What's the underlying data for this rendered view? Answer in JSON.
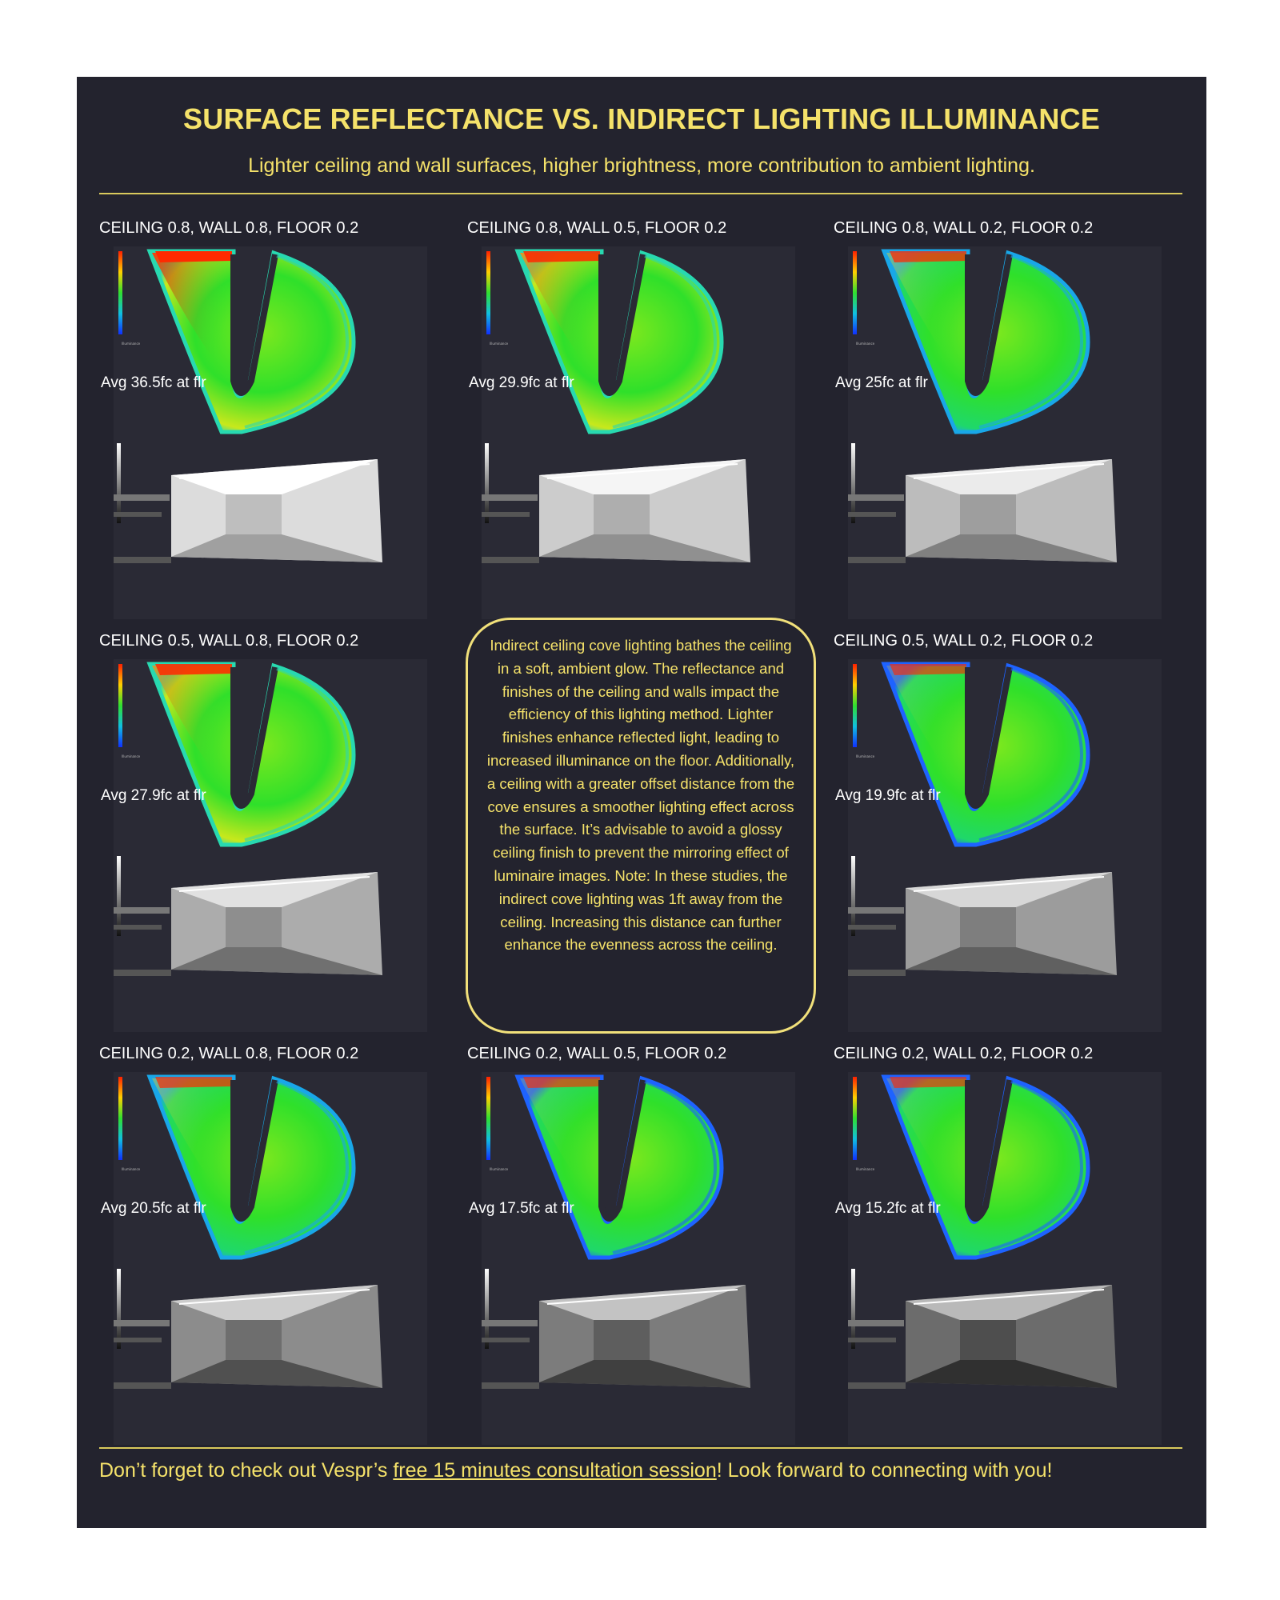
{
  "header": {
    "title": "SURFACE REFLECTANCE VS. INDIRECT LIGHTING ILLUMINANCE",
    "subtitle": "Lighter ceiling and wall surfaces, higher brightness, more contribution to ambient lighting."
  },
  "studies": [
    {
      "label": "CEILING 0.8, WALL 0.8, FLOOR 0.2",
      "avg": "Avg 36.5fc at flr"
    },
    {
      "label": "CEILING 0.8, WALL 0.5, FLOOR 0.2",
      "avg": "Avg 29.9fc at flr"
    },
    {
      "label": "CEILING 0.8, WALL 0.2, FLOOR 0.2",
      "avg": "Avg 25fc at flr"
    },
    {
      "label": "CEILING 0.5, WALL 0.8, FLOOR 0.2",
      "avg": "Avg 27.9fc at flr"
    },
    {
      "label": "CEILING 0.5, WALL 0.2, FLOOR 0.2",
      "avg": "Avg 19.9fc at flr"
    },
    {
      "label": "CEILING 0.2, WALL 0.8, FLOOR 0.2",
      "avg": "Avg 20.5fc at flr"
    },
    {
      "label": "CEILING 0.2, WALL 0.5, FLOOR 0.2",
      "avg": "Avg 17.5fc at flr"
    },
    {
      "label": "CEILING 0.2, WALL 0.2, FLOOR 0.2",
      "avg": "Avg 15.2fc at flr"
    }
  ],
  "callout": {
    "text": "Indirect ceiling cove lighting bathes the ceiling in a soft, ambient glow. The reflectance and finishes of the ceiling and walls impact the efficiency of this lighting method. Lighter finishes enhance reflected light, leading to increased illuminance on the floor. Additionally, a ceiling with a greater offset distance from the cove ensures a smoother lighting effect across the surface. It’s advisable to avoid a glossy ceiling finish to prevent the mirroring effect of luminaire images. Note: In these studies, the indirect cove lighting was 1ft away from the ceiling. Increasing this distance can further enhance the evenness across the ceiling."
  },
  "footer": {
    "prefix": "Don’t forget to check out Vespr’s ",
    "link_text": "free 15 minutes consultation session",
    "suffix": "!  Look forward to connecting with you!"
  },
  "colors": {
    "panel_bg": "#23232e",
    "accent_yellow": "#f5e26a",
    "heatmap_green": "#22dd22",
    "heatmap_red": "#ee2200",
    "heatmap_blue": "#1e63ff"
  }
}
